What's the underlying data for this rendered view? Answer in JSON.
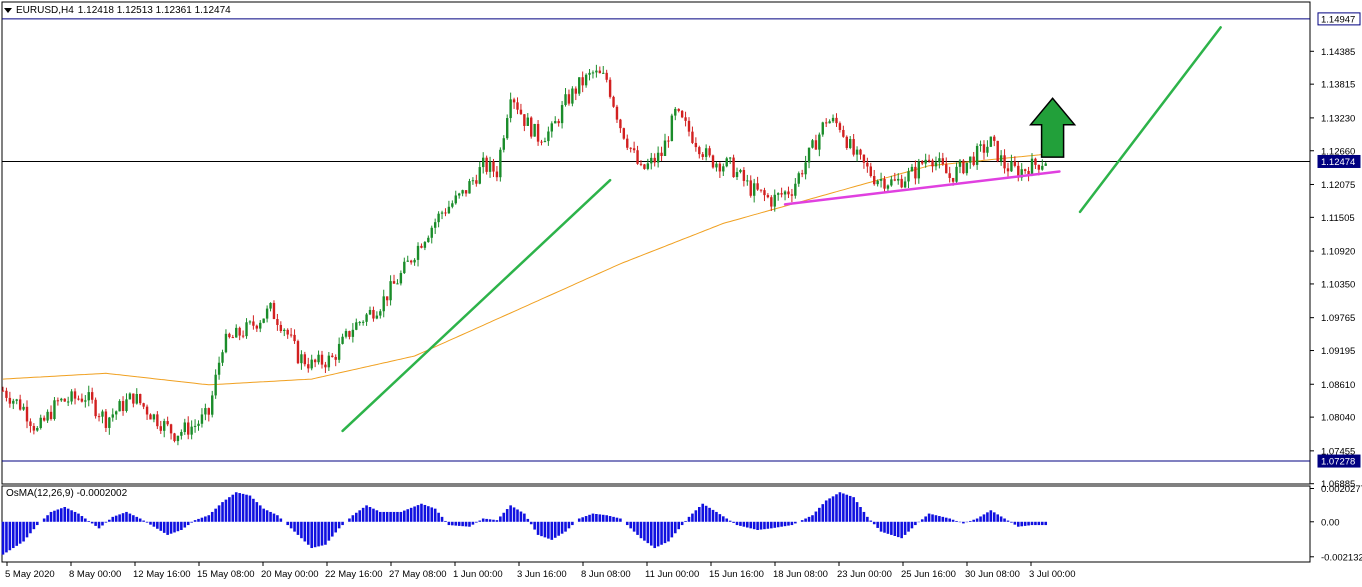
{
  "header": {
    "symbol_tf": "EURUSD,H4",
    "ohlc": "1.12418 1.12513 1.12361 1.12474"
  },
  "colors": {
    "bull": "#1a8c2a",
    "bear": "#d22020",
    "ma": "#f0a020",
    "trendline": "#2db34a",
    "support": "#e040e0",
    "arrow": "#22a03a",
    "hline": "#000080",
    "histogram": "#1010e0",
    "axis": "#000000"
  },
  "icons": [
    "dropdown-triangle-icon",
    "up-arrow-icon"
  ],
  "chart_data": [
    {
      "type": "candlestick",
      "title": "EURUSD,H4",
      "ylim": [
        1.0688,
        1.1524
      ],
      "y_ticks": [
        "1.14385",
        "1.13815",
        "1.13230",
        "1.12660",
        "1.12075",
        "1.11505",
        "1.10920",
        "1.10350",
        "1.09765",
        "1.09195",
        "1.08610",
        "1.08040",
        "1.07455",
        "1.06885"
      ],
      "x_ticks": [
        "5 May 2020",
        "8 May 00:00",
        "12 May 16:00",
        "15 May 08:00",
        "20 May 00:00",
        "22 May 16:00",
        "27 May 08:00",
        "1 Jun 00:00",
        "3 Jun 16:00",
        "8 Jun 08:00",
        "11 Jun 00:00",
        "15 Jun 16:00",
        "18 Jun 08:00",
        "23 Jun 00:00",
        "25 Jun 16:00",
        "30 Jun 08:00",
        "3 Jul 00:00"
      ],
      "price_labels": [
        {
          "value": 1.14947,
          "text": "1.14947",
          "style": "boxed"
        },
        {
          "value": 1.12474,
          "text": "1.12474",
          "style": "filled"
        },
        {
          "value": 1.07278,
          "text": "1.07278",
          "style": "filled"
        }
      ],
      "horizontal_lines": [
        1.14947,
        1.12474,
        1.07278
      ],
      "close_waypoints": [
        [
          0,
          1.085
        ],
        [
          6,
          1.082
        ],
        [
          10,
          1.078
        ],
        [
          16,
          1.083
        ],
        [
          24,
          1.084
        ],
        [
          30,
          1.08
        ],
        [
          38,
          1.084
        ],
        [
          44,
          1.0805
        ],
        [
          50,
          1.0775
        ],
        [
          56,
          1.079
        ],
        [
          60,
          1.081
        ],
        [
          64,
          1.093
        ],
        [
          72,
          1.096
        ],
        [
          78,
          1.099
        ],
        [
          82,
          1.096
        ],
        [
          86,
          1.091
        ],
        [
          90,
          1.0895
        ],
        [
          96,
          1.0905
        ],
        [
          102,
          1.096
        ],
        [
          110,
          1.1
        ],
        [
          116,
          1.105
        ],
        [
          122,
          1.111
        ],
        [
          128,
          1.116
        ],
        [
          134,
          1.119
        ],
        [
          140,
          1.124
        ],
        [
          144,
          1.123
        ],
        [
          148,
          1.137
        ],
        [
          152,
          1.132
        ],
        [
          156,
          1.129
        ],
        [
          160,
          1.13
        ],
        [
          164,
          1.135
        ],
        [
          168,
          1.138
        ],
        [
          172,
          1.14
        ],
        [
          176,
          1.139
        ],
        [
          180,
          1.131
        ],
        [
          186,
          1.123
        ],
        [
          192,
          1.126
        ],
        [
          196,
          1.133
        ],
        [
          200,
          1.13
        ],
        [
          206,
          1.125
        ],
        [
          212,
          1.124
        ],
        [
          218,
          1.12
        ],
        [
          224,
          1.118
        ],
        [
          230,
          1.12
        ],
        [
          236,
          1.127
        ],
        [
          240,
          1.132
        ],
        [
          244,
          1.131
        ],
        [
          248,
          1.126
        ],
        [
          254,
          1.122
        ],
        [
          260,
          1.121
        ],
        [
          266,
          1.123
        ],
        [
          270,
          1.126
        ],
        [
          276,
          1.122
        ],
        [
          282,
          1.125
        ],
        [
          288,
          1.128
        ],
        [
          292,
          1.124
        ],
        [
          296,
          1.123
        ],
        [
          300,
          1.124
        ],
        [
          304,
          1.125
        ]
      ],
      "moving_average": [
        [
          0,
          1.087
        ],
        [
          30,
          1.088
        ],
        [
          60,
          1.086
        ],
        [
          90,
          1.087
        ],
        [
          120,
          1.091
        ],
        [
          150,
          1.099
        ],
        [
          180,
          1.107
        ],
        [
          210,
          1.114
        ],
        [
          240,
          1.119
        ],
        [
          270,
          1.124
        ],
        [
          304,
          1.126
        ]
      ],
      "trendlines": [
        {
          "name": "uptrend-left",
          "from": [
            99,
            1.078
          ],
          "to": [
            177,
            1.1215
          ]
        },
        {
          "name": "uptrend-right",
          "from": [
            314,
            1.116
          ],
          "to": [
            355,
            1.148
          ]
        },
        {
          "name": "support",
          "from": [
            228,
            1.1173
          ],
          "to": [
            308,
            1.123
          ]
        }
      ],
      "arrow": {
        "x": 306,
        "base": 1.1255,
        "tip": 1.1357
      }
    },
    {
      "type": "histogram",
      "title": "OsMA(12,26,9) -0.0002002",
      "ylim": [
        -0.00245,
        0.00218
      ],
      "y_ticks": [
        "0.0020277",
        "0.00",
        "-0.002132"
      ],
      "value_waypoints": [
        [
          0,
          -0.002
        ],
        [
          6,
          -0.0012
        ],
        [
          10,
          -0.0002
        ],
        [
          14,
          0.0006
        ],
        [
          18,
          0.0009
        ],
        [
          22,
          0.0005
        ],
        [
          28,
          -0.0004
        ],
        [
          32,
          0.0003
        ],
        [
          36,
          0.0006
        ],
        [
          40,
          0.0002
        ],
        [
          44,
          -0.0003
        ],
        [
          48,
          -0.0008
        ],
        [
          52,
          -0.0005
        ],
        [
          56,
          0.0001
        ],
        [
          60,
          0.0004
        ],
        [
          64,
          0.0012
        ],
        [
          68,
          0.0018
        ],
        [
          72,
          0.0016
        ],
        [
          76,
          0.0008
        ],
        [
          80,
          0.0004
        ],
        [
          86,
          -0.0008
        ],
        [
          90,
          -0.0016
        ],
        [
          94,
          -0.0014
        ],
        [
          98,
          -0.0004
        ],
        [
          102,
          0.0004
        ],
        [
          106,
          0.001
        ],
        [
          110,
          0.0006
        ],
        [
          116,
          0.0006
        ],
        [
          122,
          0.0011
        ],
        [
          126,
          0.0008
        ],
        [
          130,
          -0.0002
        ],
        [
          136,
          -0.0003
        ],
        [
          140,
          0.0002
        ],
        [
          144,
          0.0001
        ],
        [
          148,
          0.001
        ],
        [
          152,
          0.0005
        ],
        [
          156,
          -0.0008
        ],
        [
          160,
          -0.0011
        ],
        [
          164,
          -0.0006
        ],
        [
          168,
          0.0002
        ],
        [
          172,
          0.0005
        ],
        [
          176,
          0.0004
        ],
        [
          180,
          0.0002
        ],
        [
          186,
          -0.001
        ],
        [
          190,
          -0.0016
        ],
        [
          194,
          -0.0012
        ],
        [
          200,
          0.0003
        ],
        [
          204,
          0.0011
        ],
        [
          208,
          0.0006
        ],
        [
          214,
          -0.0002
        ],
        [
          220,
          -0.0005
        ],
        [
          224,
          -0.0004
        ],
        [
          230,
          -0.0002
        ],
        [
          236,
          0.0004
        ],
        [
          240,
          0.0013
        ],
        [
          244,
          0.0018
        ],
        [
          248,
          0.0015
        ],
        [
          252,
          0.0003
        ],
        [
          256,
          -0.0006
        ],
        [
          262,
          -0.001
        ],
        [
          266,
          -0.0002
        ],
        [
          270,
          0.0005
        ],
        [
          276,
          0.0002
        ],
        [
          280,
          -0.0001
        ],
        [
          284,
          0.0002
        ],
        [
          288,
          0.0007
        ],
        [
          292,
          0.0002
        ],
        [
          296,
          -0.0003
        ],
        [
          300,
          -0.0002
        ],
        [
          304,
          -0.0002
        ]
      ]
    }
  ]
}
